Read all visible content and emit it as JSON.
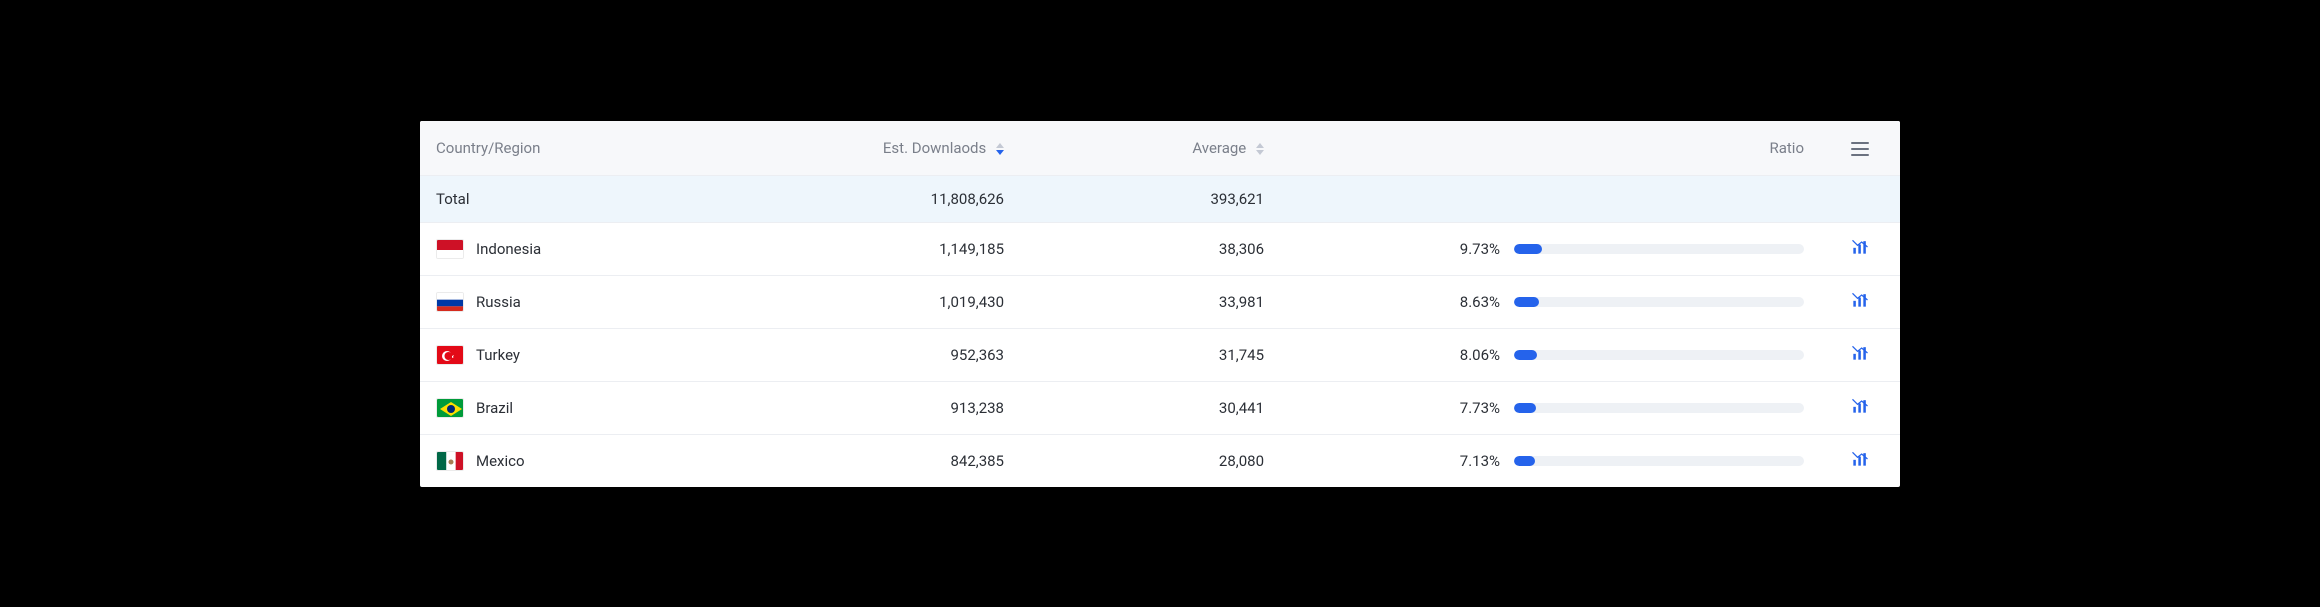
{
  "columns": {
    "country": "Country/Region",
    "downloads": "Est. Downlaods",
    "average": "Average",
    "ratio": "Ratio"
  },
  "sort": {
    "active_column": "downloads",
    "direction": "desc"
  },
  "total_row": {
    "label": "Total",
    "downloads": "11,808,626",
    "average": "393,621"
  },
  "rows": [
    {
      "country": "Indonesia",
      "flag": {
        "stripes": [
          {
            "color": "#ce1126",
            "h": 0.5
          },
          {
            "color": "#ffffff",
            "h": 0.5
          }
        ]
      },
      "downloads": "1,149,185",
      "average": "38,306",
      "ratio_label": "9.73%",
      "ratio_pct": 9.73
    },
    {
      "country": "Russia",
      "flag": {
        "stripes": [
          {
            "color": "#ffffff",
            "h": 0.3333
          },
          {
            "color": "#0039a6",
            "h": 0.3333
          },
          {
            "color": "#d52b1e",
            "h": 0.3334
          }
        ]
      },
      "downloads": "1,019,430",
      "average": "33,981",
      "ratio_label": "8.63%",
      "ratio_pct": 8.63
    },
    {
      "country": "Turkey",
      "flag": {
        "bg": "#e30a17",
        "symbol": "turkey"
      },
      "downloads": "952,363",
      "average": "31,745",
      "ratio_label": "8.06%",
      "ratio_pct": 8.06
    },
    {
      "country": "Brazil",
      "flag": {
        "bg": "#009b3a",
        "symbol": "brazil"
      },
      "downloads": "913,238",
      "average": "30,441",
      "ratio_label": "7.73%",
      "ratio_pct": 7.73
    },
    {
      "country": "Mexico",
      "flag": {
        "vstripes": [
          {
            "color": "#006847"
          },
          {
            "color": "#ffffff"
          },
          {
            "color": "#ce1126"
          }
        ],
        "symbol": "mexico"
      },
      "downloads": "842,385",
      "average": "28,080",
      "ratio_label": "7.13%",
      "ratio_pct": 7.13
    }
  ],
  "style": {
    "header_bg": "#f7f8fa",
    "header_text": "#7a7f8a",
    "total_bg": "#eef6fc",
    "row_border": "#eceef2",
    "text_color": "#2b2f36",
    "bar_bg": "#eef1f5",
    "bar_fill": "#2563eb",
    "icon_color": "#2563eb",
    "sort_inactive": "#c4c9d4",
    "sort_active": "#2563eb",
    "font_size": 15
  }
}
